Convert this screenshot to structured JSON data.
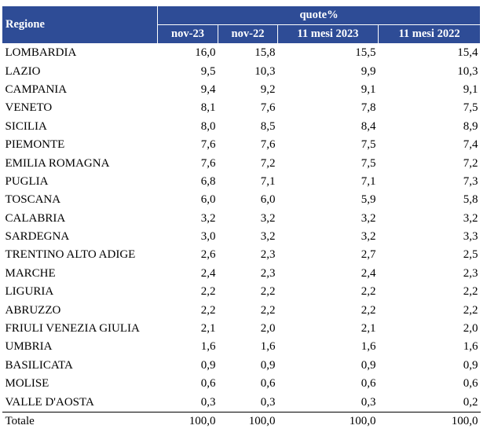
{
  "header": {
    "region_label": "Regione",
    "group_label": "quote%",
    "columns": [
      "nov-23",
      "nov-22",
      "11 mesi 2023",
      "11 mesi 2022"
    ]
  },
  "rows": [
    {
      "name": "LOMBARDIA",
      "values": [
        "16,0",
        "15,8",
        "15,5",
        "15,4"
      ]
    },
    {
      "name": "LAZIO",
      "values": [
        "9,5",
        "10,3",
        "9,9",
        "10,3"
      ]
    },
    {
      "name": "CAMPANIA",
      "values": [
        "9,4",
        "9,2",
        "9,1",
        "9,1"
      ]
    },
    {
      "name": "VENETO",
      "values": [
        "8,1",
        "7,6",
        "7,8",
        "7,5"
      ]
    },
    {
      "name": "SICILIA",
      "values": [
        "8,0",
        "8,5",
        "8,4",
        "8,9"
      ]
    },
    {
      "name": "PIEMONTE",
      "values": [
        "7,6",
        "7,6",
        "7,5",
        "7,4"
      ]
    },
    {
      "name": "EMILIA ROMAGNA",
      "values": [
        "7,6",
        "7,2",
        "7,5",
        "7,2"
      ]
    },
    {
      "name": "PUGLIA",
      "values": [
        "6,8",
        "7,1",
        "7,1",
        "7,3"
      ]
    },
    {
      "name": "TOSCANA",
      "values": [
        "6,0",
        "6,0",
        "5,9",
        "5,8"
      ]
    },
    {
      "name": "CALABRIA",
      "values": [
        "3,2",
        "3,2",
        "3,2",
        "3,2"
      ]
    },
    {
      "name": "SARDEGNA",
      "values": [
        "3,0",
        "3,2",
        "3,2",
        "3,3"
      ]
    },
    {
      "name": "TRENTINO ALTO ADIGE",
      "values": [
        "2,6",
        "2,3",
        "2,7",
        "2,5"
      ]
    },
    {
      "name": "MARCHE",
      "values": [
        "2,4",
        "2,3",
        "2,4",
        "2,3"
      ]
    },
    {
      "name": "LIGURIA",
      "values": [
        "2,2",
        "2,2",
        "2,2",
        "2,2"
      ]
    },
    {
      "name": "ABRUZZO",
      "values": [
        "2,2",
        "2,2",
        "2,2",
        "2,2"
      ]
    },
    {
      "name": "FRIULI VENEZIA GIULIA",
      "values": [
        "2,1",
        "2,0",
        "2,1",
        "2,0"
      ]
    },
    {
      "name": "UMBRIA",
      "values": [
        "1,6",
        "1,6",
        "1,6",
        "1,6"
      ]
    },
    {
      "name": "BASILICATA",
      "values": [
        "0,9",
        "0,9",
        "0,9",
        "0,9"
      ]
    },
    {
      "name": "MOLISE",
      "values": [
        "0,6",
        "0,6",
        "0,6",
        "0,6"
      ]
    },
    {
      "name": "VALLE D'AOSTA",
      "values": [
        "0,3",
        "0,3",
        "0,3",
        "0,2"
      ]
    }
  ],
  "total": {
    "name": "Totale",
    "values": [
      "100,0",
      "100,0",
      "100,0",
      "100,0"
    ]
  },
  "colors": {
    "header_bg": "#2e4c96",
    "header_text": "#ffffff"
  }
}
